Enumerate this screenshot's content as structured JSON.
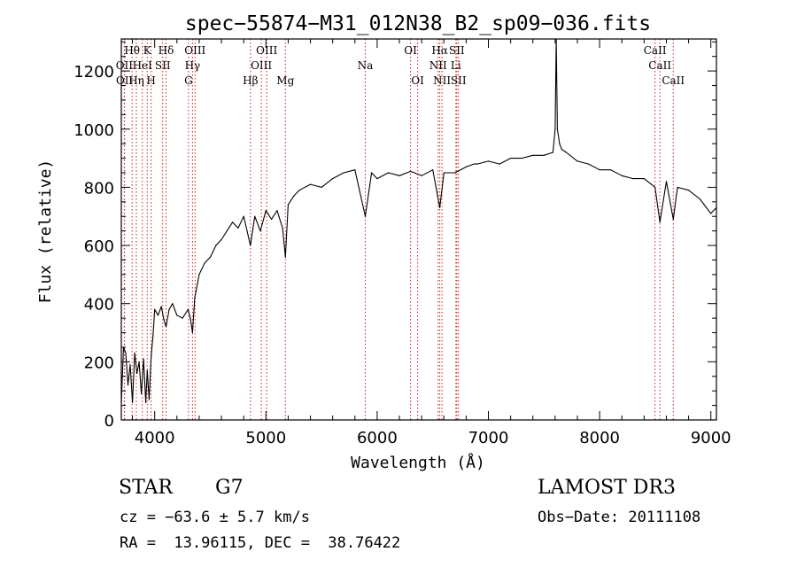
{
  "chart_data": {
    "type": "line",
    "title": "spec−55874−M31_012N38_B2_sp09−036.fits",
    "xlabel": "Wavelength (Å)",
    "ylabel": "Flux (relative)",
    "xlim": [
      3700,
      9050
    ],
    "ylim": [
      0,
      1310
    ],
    "xticks": [
      4000,
      5000,
      6000,
      7000,
      8000,
      9000
    ],
    "yticks": [
      0,
      200,
      400,
      600,
      800,
      1000,
      1200
    ],
    "grid": false,
    "series": [
      {
        "line_color": "#000000",
        "x": [
          3700,
          3720,
          3740,
          3760,
          3780,
          3800,
          3820,
          3840,
          3860,
          3880,
          3900,
          3920,
          3933,
          3950,
          3968,
          3985,
          4000,
          4030,
          4060,
          4080,
          4102,
          4130,
          4160,
          4200,
          4250,
          4300,
          4320,
          4340,
          4360,
          4400,
          4450,
          4500,
          4550,
          4600,
          4650,
          4700,
          4750,
          4800,
          4861,
          4900,
          4950,
          5000,
          5050,
          5100,
          5150,
          5175,
          5200,
          5250,
          5300,
          5400,
          5500,
          5600,
          5700,
          5800,
          5893,
          5950,
          6000,
          6100,
          6200,
          6300,
          6400,
          6500,
          6563,
          6600,
          6700,
          6800,
          6870,
          6900,
          7000,
          7100,
          7200,
          7300,
          7400,
          7500,
          7580,
          7600,
          7610,
          7620,
          7640,
          7660,
          7700,
          7800,
          7900,
          8000,
          8100,
          8200,
          8300,
          8400,
          8498,
          8542,
          8600,
          8662,
          8700,
          8800,
          8900,
          9000,
          9050
        ],
        "values": [
          60,
          250,
          230,
          120,
          190,
          60,
          230,
          160,
          200,
          90,
          210,
          60,
          170,
          70,
          220,
          290,
          380,
          360,
          390,
          350,
          320,
          380,
          400,
          360,
          350,
          380,
          350,
          300,
          420,
          500,
          540,
          560,
          600,
          620,
          650,
          680,
          660,
          700,
          600,
          700,
          650,
          720,
          690,
          720,
          660,
          560,
          740,
          770,
          790,
          810,
          800,
          830,
          850,
          860,
          700,
          850,
          830,
          850,
          840,
          855,
          840,
          860,
          730,
          850,
          850,
          870,
          880,
          880,
          890,
          880,
          900,
          900,
          910,
          910,
          920,
          1000,
          1310,
          1000,
          950,
          930,
          920,
          890,
          880,
          860,
          860,
          840,
          830,
          830,
          800,
          680,
          820,
          690,
          800,
          790,
          760,
          710,
          730
        ]
      }
    ],
    "spectral_lines": [
      {
        "name": "Hθ",
        "x": 3797,
        "row": 0
      },
      {
        "name": "K",
        "x": 3933,
        "row": 0
      },
      {
        "name": "Hδ",
        "x": 4102,
        "row": 0
      },
      {
        "name": "OIII",
        "x": 4363,
        "row": 0
      },
      {
        "name": "OIII",
        "x": 5007,
        "row": 0
      },
      {
        "name": "OI",
        "x": 6300,
        "row": 0
      },
      {
        "name": "Hα",
        "x": 6563,
        "row": 0
      },
      {
        "name": "SII",
        "x": 6716,
        "row": 0
      },
      {
        "name": "CaII",
        "x": 8498,
        "row": 0
      },
      {
        "name": "OII",
        "x": 3727,
        "row": 1
      },
      {
        "name": "HeI",
        "x": 3889,
        "row": 1
      },
      {
        "name": "SII",
        "x": 4072,
        "row": 1
      },
      {
        "name": "Hγ",
        "x": 4340,
        "row": 1
      },
      {
        "name": "OIII",
        "x": 4959,
        "row": 1
      },
      {
        "name": "Na",
        "x": 5893,
        "row": 1
      },
      {
        "name": "NII",
        "x": 6548,
        "row": 1
      },
      {
        "name": "Li",
        "x": 6708,
        "row": 1
      },
      {
        "name": "CaII",
        "x": 8542,
        "row": 1
      },
      {
        "name": "OII",
        "x": 3729,
        "row": 2
      },
      {
        "name": "Hη",
        "x": 3835,
        "row": 2
      },
      {
        "name": "H",
        "x": 3968,
        "row": 2
      },
      {
        "name": "G",
        "x": 4304,
        "row": 2
      },
      {
        "name": "Hβ",
        "x": 4861,
        "row": 2
      },
      {
        "name": "Mg",
        "x": 5175,
        "row": 2
      },
      {
        "name": "OI",
        "x": 6364,
        "row": 2
      },
      {
        "name": "NII",
        "x": 6583,
        "row": 2
      },
      {
        "name": "SII",
        "x": 6731,
        "row": 2
      },
      {
        "name": "CaII",
        "x": 8662,
        "row": 2
      }
    ]
  },
  "info": {
    "class_label": "STAR",
    "subclass": "G7",
    "cz": "cz = −63.6 ± 5.7 km/s",
    "radec": "RA =  13.96115, DEC =  38.76422",
    "survey": "LAMOST DR3",
    "obs_date": "Obs−Date: 20111108"
  },
  "colors": {
    "line_marker": "#cc2222",
    "spectrum": "#000000",
    "axes": "#000000"
  }
}
